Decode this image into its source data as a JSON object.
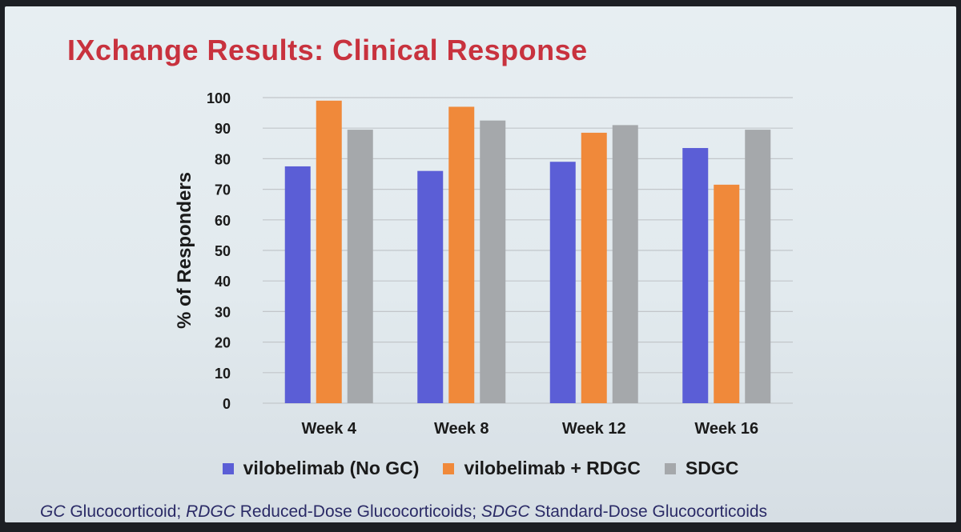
{
  "title": "IXchange Results: Clinical Response",
  "colors": {
    "title": "#c8323e",
    "series": [
      "#5b5ed6",
      "#f0893a",
      "#a5a8ab"
    ],
    "grid": "#c2c6ca",
    "axis_text": "#1a1a1a"
  },
  "chart_data": {
    "type": "bar",
    "title": "IXchange Results: Clinical Response",
    "xlabel": "",
    "ylabel": "% of Responders",
    "ylim": [
      0,
      100
    ],
    "yticks": [
      0,
      10,
      20,
      30,
      40,
      50,
      60,
      70,
      80,
      90,
      100
    ],
    "grid": true,
    "legend_position": "bottom",
    "categories": [
      "Week 4",
      "Week 8",
      "Week 12",
      "Week 16"
    ],
    "series": [
      {
        "name": "vilobelimab (No GC)",
        "values": [
          77.5,
          76,
          79,
          83.5
        ]
      },
      {
        "name": "vilobelimab + RDGC",
        "values": [
          99,
          97,
          88.5,
          71.5
        ]
      },
      {
        "name": "SDGC",
        "values": [
          89.5,
          92.5,
          91,
          89.5
        ]
      }
    ]
  },
  "footnote": [
    {
      "abbr": "GC",
      "text": " Glucocorticoid; "
    },
    {
      "abbr": "RDGC",
      "text": " Reduced-Dose Glucocorticoids; "
    },
    {
      "abbr": "SDGC",
      "text": " Standard-Dose Glucocorticoids"
    }
  ]
}
